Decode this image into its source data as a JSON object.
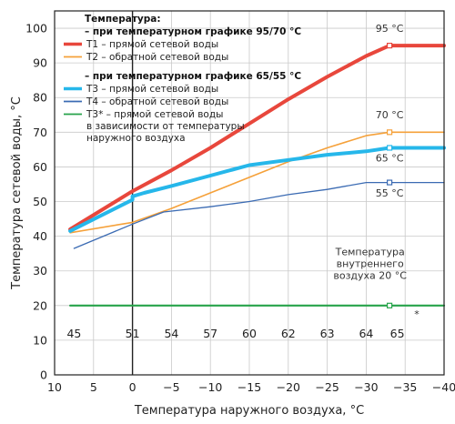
{
  "chart_data": {
    "type": "line",
    "xlabel": "Температура наружного воздуха, °С",
    "ylabel": "Температура сетевой воды, °С",
    "xlim": [
      10,
      -40
    ],
    "ylim": [
      0,
      105
    ],
    "x_ticks": [
      "10",
      "5",
      "0",
      "−5",
      "−10",
      "−15",
      "−20",
      "−25",
      "−30",
      "−35",
      "−40"
    ],
    "x_tick_values": [
      10,
      5,
      0,
      -5,
      -10,
      -15,
      -20,
      -25,
      -30,
      -35,
      -40
    ],
    "y_ticks": [
      0,
      10,
      20,
      30,
      40,
      50,
      60,
      70,
      80,
      90,
      100
    ],
    "grid": true,
    "reference_line_x": 0,
    "secondary_row": {
      "labels": [
        "45",
        "51",
        "54",
        "57",
        "60",
        "62",
        "63",
        "64",
        "65"
      ],
      "x": [
        7.5,
        0,
        -5,
        -10,
        -15,
        -20,
        -25,
        -30,
        -34
      ],
      "y": 12
    },
    "legend": {
      "heading": "Температура:",
      "group1": "– при температурном графике 95/70 °С",
      "group2": "– при температурном графике 65/55 °С",
      "entries": [
        {
          "key": "T1",
          "lines": [
            "T1 – прямой сетевой воды"
          ]
        },
        {
          "key": "T2",
          "lines": [
            "T2 – обратной сетевой воды"
          ]
        },
        {
          "key": "T3",
          "lines": [
            "T3 – прямой сетевой воды"
          ]
        },
        {
          "key": "T4",
          "lines": [
            "T4 – обратной сетевой воды"
          ]
        },
        {
          "key": "T3s",
          "lines": [
            "T3* – прямой сетевой воды",
            "в зависимости от температуры",
            "наружного воздуха"
          ]
        }
      ]
    },
    "series": [
      {
        "key": "T1",
        "color": "#e8473c",
        "x": [
          8,
          0,
          -5,
          -10,
          -15,
          -20,
          -25,
          -30,
          -33,
          -40
        ],
        "y": [
          42,
          53,
          59,
          65.5,
          72.5,
          79.5,
          86,
          92,
          95,
          95
        ]
      },
      {
        "key": "T2",
        "color": "#f5a13a",
        "x": [
          8,
          0,
          -5,
          -10,
          -15,
          -20,
          -25,
          -30,
          -33,
          -40
        ],
        "y": [
          41,
          44,
          48,
          52.5,
          57,
          61.5,
          65.5,
          69,
          70,
          70
        ]
      },
      {
        "key": "T3",
        "color": "#26b7ea",
        "x": [
          8,
          0,
          0,
          -1.5,
          -5,
          -10,
          -15,
          -20,
          -25,
          -30,
          -33,
          -40
        ],
        "y": [
          41.5,
          50.5,
          51.5,
          52.5,
          54.5,
          57.5,
          60.5,
          62,
          63.5,
          64.5,
          65.5,
          65.5
        ]
      },
      {
        "key": "T4",
        "color": "#3b6bb3",
        "x": [
          7.5,
          0,
          -4,
          -10,
          -15,
          -20,
          -25,
          -30,
          -33,
          -40
        ],
        "y": [
          36.5,
          43.5,
          47,
          48.5,
          50,
          52,
          53.5,
          55.5,
          55.5,
          55.5
        ]
      },
      {
        "key": "T3s",
        "color": "#27a34a",
        "x": [
          8,
          -40
        ],
        "y": [
          20,
          20
        ]
      }
    ],
    "annotations": [
      {
        "text": "95 °С",
        "x": -33,
        "y": 99
      },
      {
        "text": "70 °С",
        "x": -33,
        "y": 74
      },
      {
        "text": "65 °С",
        "x": -33,
        "y": 61.5
      },
      {
        "text": "55 °С",
        "x": -33,
        "y": 51.5
      },
      {
        "text": "*",
        "x": -36.5,
        "y": 16.5
      }
    ],
    "note_lines": [
      "Температура",
      "внутреннего",
      "воздуха 20 °С"
    ],
    "note_anchor": {
      "x": -30.5,
      "y": 34.5
    },
    "markers": [
      {
        "key": "T1",
        "x": -33,
        "y": 95
      },
      {
        "key": "T2",
        "x": -33,
        "y": 70
      },
      {
        "key": "T3",
        "x": -33,
        "y": 65.5
      },
      {
        "key": "T4",
        "x": -33,
        "y": 55.5
      },
      {
        "key": "T3s",
        "x": -33,
        "y": 20
      }
    ]
  }
}
